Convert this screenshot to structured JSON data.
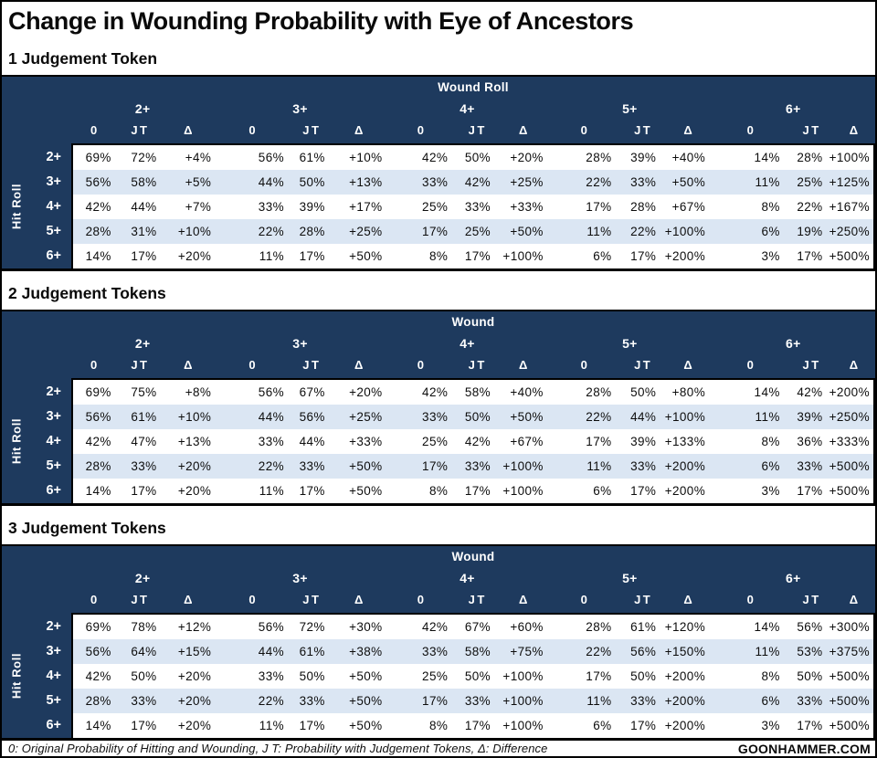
{
  "page": {
    "title": "Change in Wounding Probability with Eye of Ancestors",
    "footer": {
      "note": "0: Original Probability of Hitting and Wounding, J T: Probability with Judgement Tokens, Δ: Difference",
      "brand": "GOONHAMMER.COM"
    }
  },
  "colors": {
    "header_navy": "#1e3a5e",
    "row_alt_blue": "#dbe6f3",
    "row_base": "#ffffff",
    "border": "#000000",
    "header_text": "#ffffff"
  },
  "chart_data": [
    {
      "type": "table",
      "title": "1 Judgement Token",
      "corner_header": "Wound Roll",
      "row_axis": "Hit Roll",
      "col_groups": [
        "2+",
        "3+",
        "4+",
        "5+",
        "6+"
      ],
      "sub_columns": [
        "0",
        "JT",
        "Δ"
      ],
      "row_labels": [
        "2+",
        "3+",
        "4+",
        "5+",
        "6+"
      ],
      "rows": [
        [
          "69%",
          "72%",
          "+4%",
          "56%",
          "61%",
          "+10%",
          "42%",
          "50%",
          "+20%",
          "28%",
          "39%",
          "+40%",
          "14%",
          "28%",
          "+100%"
        ],
        [
          "56%",
          "58%",
          "+5%",
          "44%",
          "50%",
          "+13%",
          "33%",
          "42%",
          "+25%",
          "22%",
          "33%",
          "+50%",
          "11%",
          "25%",
          "+125%"
        ],
        [
          "42%",
          "44%",
          "+7%",
          "33%",
          "39%",
          "+17%",
          "25%",
          "33%",
          "+33%",
          "17%",
          "28%",
          "+67%",
          "8%",
          "22%",
          "+167%"
        ],
        [
          "28%",
          "31%",
          "+10%",
          "22%",
          "28%",
          "+25%",
          "17%",
          "25%",
          "+50%",
          "11%",
          "22%",
          "+100%",
          "6%",
          "19%",
          "+250%"
        ],
        [
          "14%",
          "17%",
          "+20%",
          "11%",
          "17%",
          "+50%",
          "8%",
          "17%",
          "+100%",
          "6%",
          "17%",
          "+200%",
          "3%",
          "17%",
          "+500%"
        ]
      ]
    },
    {
      "type": "table",
      "title": "2 Judgement Tokens",
      "corner_header": "Wound",
      "row_axis": "Hit Roll",
      "col_groups": [
        "2+",
        "3+",
        "4+",
        "5+",
        "6+"
      ],
      "sub_columns": [
        "0",
        "JT",
        "Δ"
      ],
      "row_labels": [
        "2+",
        "3+",
        "4+",
        "5+",
        "6+"
      ],
      "rows": [
        [
          "69%",
          "75%",
          "+8%",
          "56%",
          "67%",
          "+20%",
          "42%",
          "58%",
          "+40%",
          "28%",
          "50%",
          "+80%",
          "14%",
          "42%",
          "+200%"
        ],
        [
          "56%",
          "61%",
          "+10%",
          "44%",
          "56%",
          "+25%",
          "33%",
          "50%",
          "+50%",
          "22%",
          "44%",
          "+100%",
          "11%",
          "39%",
          "+250%"
        ],
        [
          "42%",
          "47%",
          "+13%",
          "33%",
          "44%",
          "+33%",
          "25%",
          "42%",
          "+67%",
          "17%",
          "39%",
          "+133%",
          "8%",
          "36%",
          "+333%"
        ],
        [
          "28%",
          "33%",
          "+20%",
          "22%",
          "33%",
          "+50%",
          "17%",
          "33%",
          "+100%",
          "11%",
          "33%",
          "+200%",
          "6%",
          "33%",
          "+500%"
        ],
        [
          "14%",
          "17%",
          "+20%",
          "11%",
          "17%",
          "+50%",
          "8%",
          "17%",
          "+100%",
          "6%",
          "17%",
          "+200%",
          "3%",
          "17%",
          "+500%"
        ]
      ]
    },
    {
      "type": "table",
      "title": "3 Judgement Tokens",
      "corner_header": "Wound",
      "row_axis": "Hit Roll",
      "col_groups": [
        "2+",
        "3+",
        "4+",
        "5+",
        "6+"
      ],
      "sub_columns": [
        "0",
        "JT",
        "Δ"
      ],
      "row_labels": [
        "2+",
        "3+",
        "4+",
        "5+",
        "6+"
      ],
      "rows": [
        [
          "69%",
          "78%",
          "+12%",
          "56%",
          "72%",
          "+30%",
          "42%",
          "67%",
          "+60%",
          "28%",
          "61%",
          "+120%",
          "14%",
          "56%",
          "+300%"
        ],
        [
          "56%",
          "64%",
          "+15%",
          "44%",
          "61%",
          "+38%",
          "33%",
          "58%",
          "+75%",
          "22%",
          "56%",
          "+150%",
          "11%",
          "53%",
          "+375%"
        ],
        [
          "42%",
          "50%",
          "+20%",
          "33%",
          "50%",
          "+50%",
          "25%",
          "50%",
          "+100%",
          "17%",
          "50%",
          "+200%",
          "8%",
          "50%",
          "+500%"
        ],
        [
          "28%",
          "33%",
          "+20%",
          "22%",
          "33%",
          "+50%",
          "17%",
          "33%",
          "+100%",
          "11%",
          "33%",
          "+200%",
          "6%",
          "33%",
          "+500%"
        ],
        [
          "14%",
          "17%",
          "+20%",
          "11%",
          "17%",
          "+50%",
          "8%",
          "17%",
          "+100%",
          "6%",
          "17%",
          "+200%",
          "3%",
          "17%",
          "+500%"
        ]
      ]
    }
  ]
}
